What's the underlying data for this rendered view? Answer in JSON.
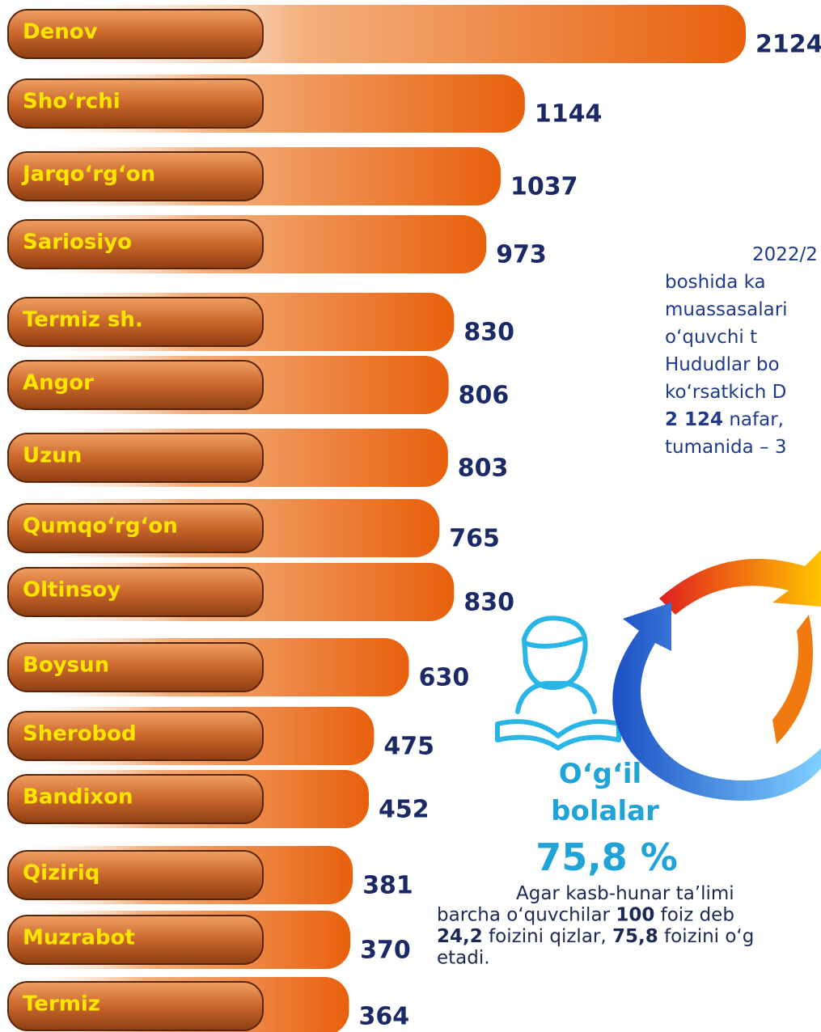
{
  "chart_data": {
    "type": "bar",
    "categories": [
      "Denov",
      "Sho‘rchi",
      "Jarqo‘rg‘on",
      "Sariosiyo",
      "Termiz sh.",
      "Angor",
      "Uzun",
      "Qumqo‘rg‘on",
      "Oltinsoy",
      "Boysun",
      "Sherobod",
      "Bandixon",
      "Qiziriq",
      "Muzrabot",
      "Termiz"
    ],
    "values": [
      2124,
      1144,
      1037,
      973,
      830,
      806,
      803,
      765,
      830,
      630,
      475,
      452,
      381,
      370,
      364
    ],
    "color": "#e8600c"
  },
  "paragraph_1": [
    [
      {
        "text": "2022/2"
      }
    ],
    [
      {
        "text": "boshida ka"
      }
    ],
    [
      {
        "text": "muassasalari"
      }
    ],
    [
      {
        "text": "o‘quvchi t"
      }
    ],
    [
      {
        "text": "Hududlar bo"
      }
    ],
    [
      {
        "text": "ko‘rsatkich D"
      }
    ],
    [
      {
        "text": "2 124",
        "bold": true
      },
      {
        "text": " nafar,"
      }
    ],
    [
      {
        "text": "tumanida – 3"
      }
    ]
  ],
  "boys_label": [
    "O‘g‘il",
    "bolalar"
  ],
  "boys_percent": "75,8 %",
  "paragraph_2": [
    [
      {
        "text": "Agar kasb-hunar ta’limi"
      }
    ],
    [
      {
        "text": "barcha o‘quvchilar "
      },
      {
        "text": "100",
        "bold": true
      },
      {
        "text": " foiz deb"
      }
    ],
    [
      {
        "text": "24,2",
        "bold": true
      },
      {
        "text": " foizini qizlar, "
      },
      {
        "text": "75,8",
        "bold": true
      },
      {
        "text": " foizini o‘g"
      }
    ],
    [
      {
        "text": "etadi."
      }
    ]
  ]
}
